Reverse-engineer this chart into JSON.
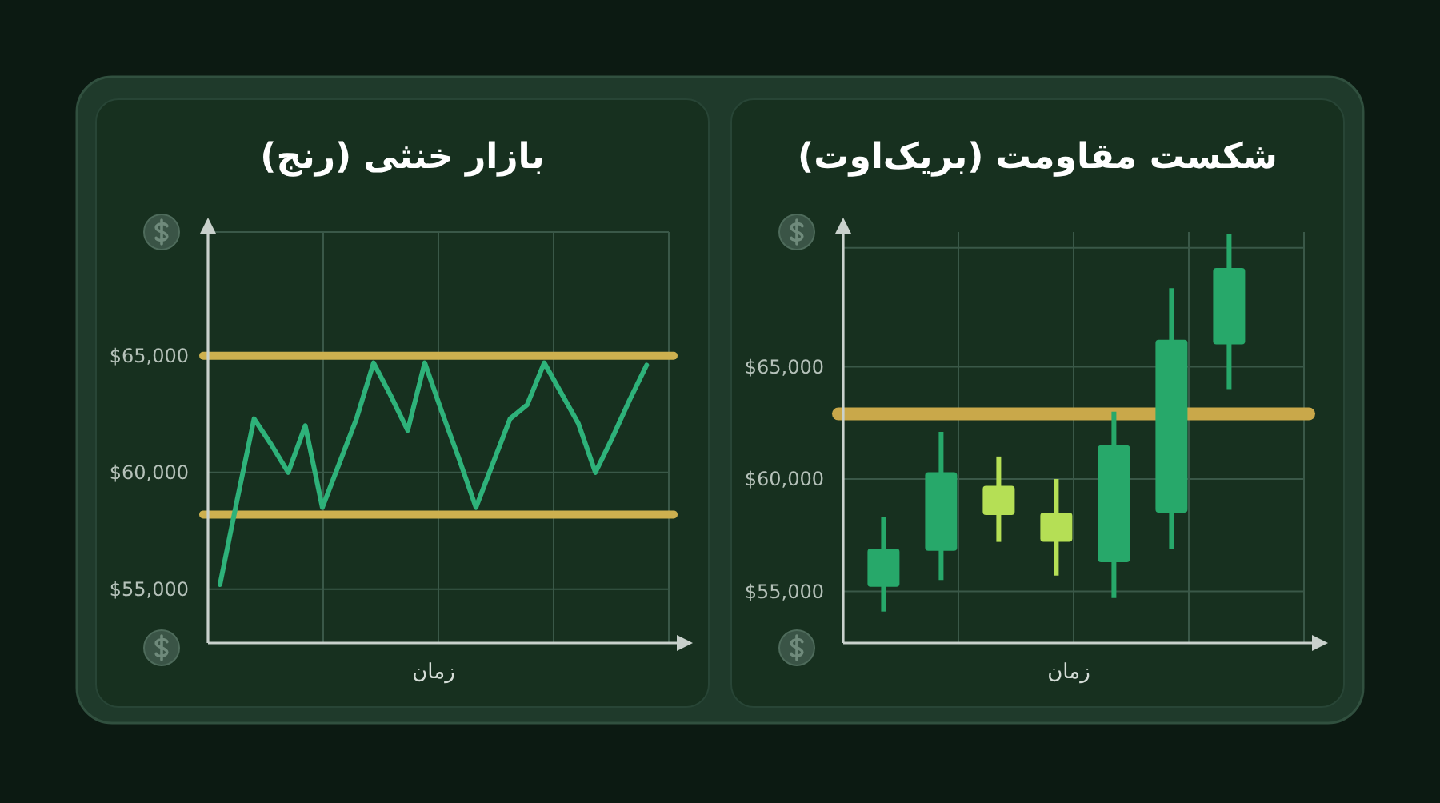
{
  "chart_data": [
    {
      "type": "line",
      "title": "بازار خنثی (رنج)",
      "xlabel": "زمان",
      "categories": [
        null,
        null,
        null,
        null,
        null,
        null,
        null,
        null,
        null,
        null,
        null,
        null,
        null,
        null,
        null,
        null,
        null,
        null,
        null,
        null,
        null,
        null,
        null,
        null,
        null,
        null
      ],
      "values": [
        55200,
        58800,
        62300,
        61200,
        60000,
        62000,
        58500,
        60400,
        62300,
        64700,
        63300,
        61800,
        64700,
        62600,
        60600,
        58500,
        60400,
        62300,
        62900,
        64700,
        63400,
        62100,
        60000,
        61500,
        63100,
        64600
      ],
      "color": "#2eb27a",
      "ylim": [
        52700,
        70300
      ],
      "yticks": [
        {
          "value": 55000,
          "label": "$55,000"
        },
        {
          "value": 60000,
          "label": "$60,000"
        },
        {
          "value": 65000,
          "label": "$65,000"
        },
        {
          "value": 70300,
          "label": null
        }
      ],
      "grid": true,
      "tick_labels": "y",
      "ref_lines": [
        {
          "axis": "y",
          "value": 65000,
          "color": "#cdb04f"
        },
        {
          "axis": "y",
          "value": 58200,
          "color": "#cdb04f"
        }
      ]
    },
    {
      "type": "candlestick",
      "title": "شکست مقاومت (بریک‌اوت)",
      "xlabel": "زمان",
      "categories": [
        null,
        null,
        null,
        null,
        null,
        null,
        null
      ],
      "ohlc": [
        [
          55200,
          58300,
          54100,
          56900
        ],
        [
          56800,
          62100,
          55500,
          60300
        ],
        [
          59700,
          61000,
          57200,
          58400
        ],
        [
          58500,
          60000,
          55700,
          57200
        ],
        [
          56300,
          63000,
          54700,
          61500
        ],
        [
          58500,
          68500,
          56900,
          66200
        ],
        [
          66000,
          70900,
          64000,
          69400
        ]
      ],
      "colors": [
        "#27a86a",
        "#27a86a",
        "#b5df55",
        "#b5df55",
        "#27a86a",
        "#27a86a",
        "#27a86a"
      ],
      "ylim": [
        52700,
        71000
      ],
      "yticks": [
        {
          "value": 55000,
          "label": "$55,000"
        },
        {
          "value": 60000,
          "label": "$60,000"
        },
        {
          "value": 65000,
          "label": "$65,000"
        },
        {
          "value": 70300,
          "label": null
        }
      ],
      "grid": true,
      "tick_labels": "y",
      "ref_lines": [
        {
          "axis": "y",
          "value": 62900,
          "color": "#c9a84a"
        }
      ]
    }
  ]
}
